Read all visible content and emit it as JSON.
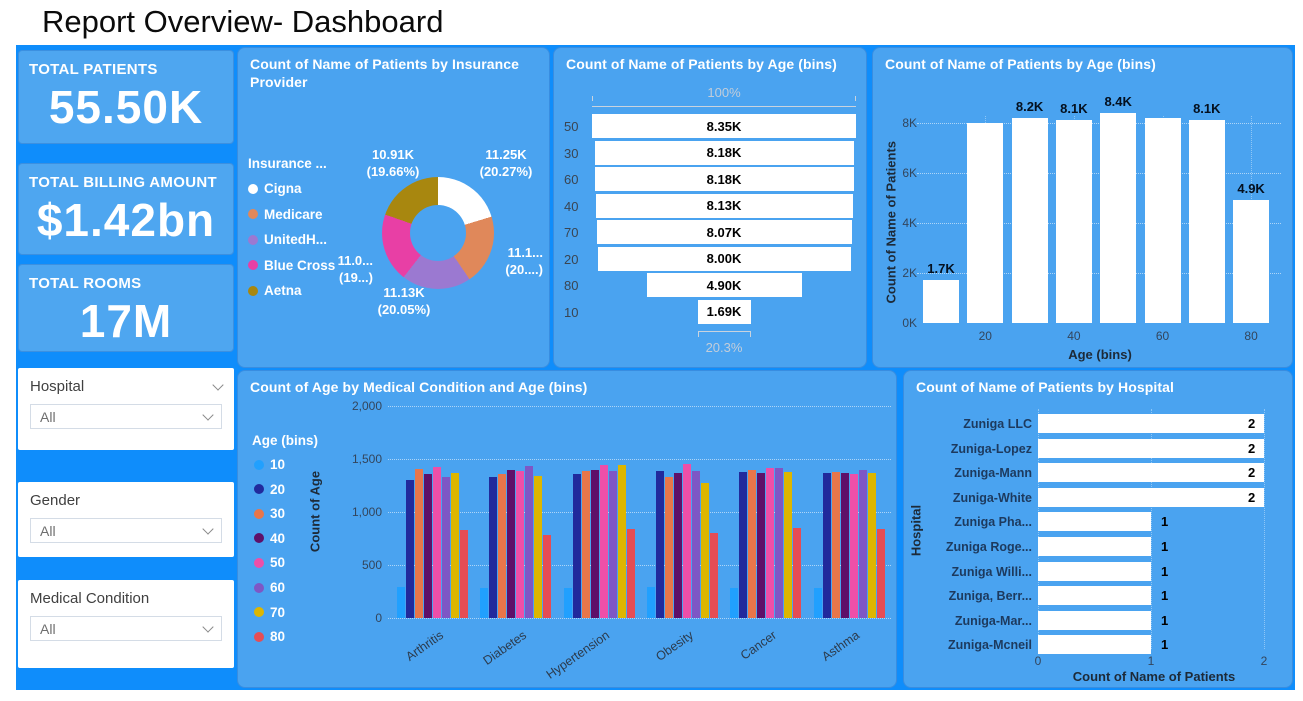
{
  "page": {
    "title": "Report Overview- Dashboard"
  },
  "colors": {
    "dashboard_background": "#0F8DFB",
    "panel_background": "#4AA3F0",
    "bar_fill": "#FFFFFF",
    "title_text": "#FFFFFF"
  },
  "sidebar": {
    "kpis": [
      {
        "label": "TOTAL PATIENTS",
        "value": "55.50K"
      },
      {
        "label": "TOTAL BILLING AMOUNT",
        "value": "$1.42bn"
      },
      {
        "label": "TOTAL ROOMS",
        "value": "17M"
      }
    ],
    "filters": [
      {
        "label": "Hospital",
        "value": "All"
      },
      {
        "label": "Gender",
        "value": "All"
      },
      {
        "label": "Medical Condition",
        "value": "All"
      }
    ]
  },
  "chart_data": [
    {
      "id": "insurance_donut",
      "type": "pie",
      "title": "Count of Name of Patients by Insurance Provider",
      "legend_title": "Insurance ...",
      "legend_position": "left",
      "categories": [
        "Cigna",
        "Medicare",
        "UnitedH...",
        "Blue Cross",
        "Aetna"
      ],
      "values_k": [
        11.25,
        11.21,
        11.13,
        11.0,
        10.91
      ],
      "percents": [
        20.27,
        20.2,
        20.05,
        19.82,
        19.66
      ],
      "slice_colors": [
        "#FFFFFF",
        "#E0885A",
        "#9B79D1",
        "#E83FA5",
        "#A8870F"
      ],
      "slice_labels": [
        {
          "line1": "11.25K",
          "line2": "(20.27%)"
        },
        {
          "line1": "11.1...",
          "line2": "(20....)"
        },
        {
          "line1": "11.13K",
          "line2": "(20.05%)"
        },
        {
          "line1": "11.0...",
          "line2": "(19...)"
        },
        {
          "line1": "10.91K",
          "line2": "(19.66%)"
        }
      ]
    },
    {
      "id": "age_funnel",
      "type": "bar",
      "subtype": "funnel",
      "title": "Count of Name of Patients by Age (bins)",
      "categories": [
        "50",
        "30",
        "60",
        "40",
        "70",
        "20",
        "80",
        "10"
      ],
      "values_k": [
        8.35,
        8.18,
        8.18,
        8.13,
        8.07,
        8.0,
        4.9,
        1.69
      ],
      "value_labels": [
        "8.35K",
        "8.18K",
        "8.18K",
        "8.13K",
        "8.07K",
        "8.00K",
        "4.90K",
        "1.69K"
      ],
      "top_label": "100%",
      "bottom_label": "20.3%"
    },
    {
      "id": "age_columns",
      "type": "bar",
      "title": "Count of Name of Patients by Age (bins)",
      "xlabel": "Age (bins)",
      "ylabel": "Count of Name of Patients",
      "categories": [
        "10",
        "20",
        "30",
        "40",
        "50",
        "60",
        "70",
        "80"
      ],
      "values_k": [
        1.7,
        8.0,
        8.2,
        8.1,
        8.4,
        8.2,
        8.1,
        4.9
      ],
      "data_labels": [
        "1.7K",
        null,
        "8.2K",
        "8.1K",
        "8.4K",
        null,
        "8.1K",
        "4.9K"
      ],
      "x_ticks": [
        "20",
        "40",
        "60",
        "80"
      ],
      "y_ticks": [
        "0K",
        "2K",
        "4K",
        "6K",
        "8K"
      ],
      "ylim": [
        0,
        8.8
      ],
      "grid": true
    },
    {
      "id": "condition_clustered",
      "type": "bar",
      "title": "Count of Age by Medical Condition and Age (bins)",
      "ylabel": "Count of Age",
      "legend_title": "Age (bins)",
      "legend_position": "left",
      "categories": [
        "Arthritis",
        "Diabetes",
        "Hypertension",
        "Obesity",
        "Cancer",
        "Asthma"
      ],
      "series": [
        {
          "name": "10",
          "color": "#21A0FE",
          "values": [
            290,
            280,
            280,
            290,
            285,
            285
          ]
        },
        {
          "name": "20",
          "color": "#212A9C",
          "values": [
            1300,
            1330,
            1360,
            1385,
            1380,
            1370
          ]
        },
        {
          "name": "30",
          "color": "#E8764A",
          "values": [
            1405,
            1360,
            1390,
            1330,
            1400,
            1375
          ]
        },
        {
          "name": "40",
          "color": "#5E1069",
          "values": [
            1360,
            1400,
            1395,
            1365,
            1370,
            1370
          ]
        },
        {
          "name": "50",
          "color": "#EE4FA8",
          "values": [
            1425,
            1390,
            1440,
            1450,
            1415,
            1360
          ]
        },
        {
          "name": "60",
          "color": "#7E57C5",
          "values": [
            1330,
            1435,
            1390,
            1385,
            1415,
            1400
          ]
        },
        {
          "name": "70",
          "color": "#DDB600",
          "values": [
            1370,
            1340,
            1445,
            1270,
            1380,
            1370
          ]
        },
        {
          "name": "80",
          "color": "#E54D55",
          "values": [
            830,
            780,
            835,
            805,
            850,
            835
          ]
        }
      ],
      "y_ticks": [
        "0",
        "500",
        "1,000",
        "1,500",
        "2,000"
      ],
      "ylim": [
        0,
        2000
      ],
      "grid": true
    },
    {
      "id": "hospital_bars",
      "type": "bar",
      "subtype": "horizontal",
      "title": "Count of Name of Patients by Hospital",
      "xlabel": "Count of Name of Patients",
      "ylabel": "Hospital",
      "categories": [
        "Zuniga LLC",
        "Zuniga-Lopez",
        "Zuniga-Mann",
        "Zuniga-White",
        "Zuniga Pha...",
        "Zuniga Roge...",
        "Zuniga Willi...",
        "Zuniga, Berr...",
        "Zuniga-Mar...",
        "Zuniga-Mcneil"
      ],
      "values": [
        2,
        2,
        2,
        2,
        1,
        1,
        1,
        1,
        1,
        1
      ],
      "x_ticks": [
        "0",
        "1",
        "2"
      ],
      "xlim": [
        0,
        2
      ],
      "grid": true
    }
  ]
}
